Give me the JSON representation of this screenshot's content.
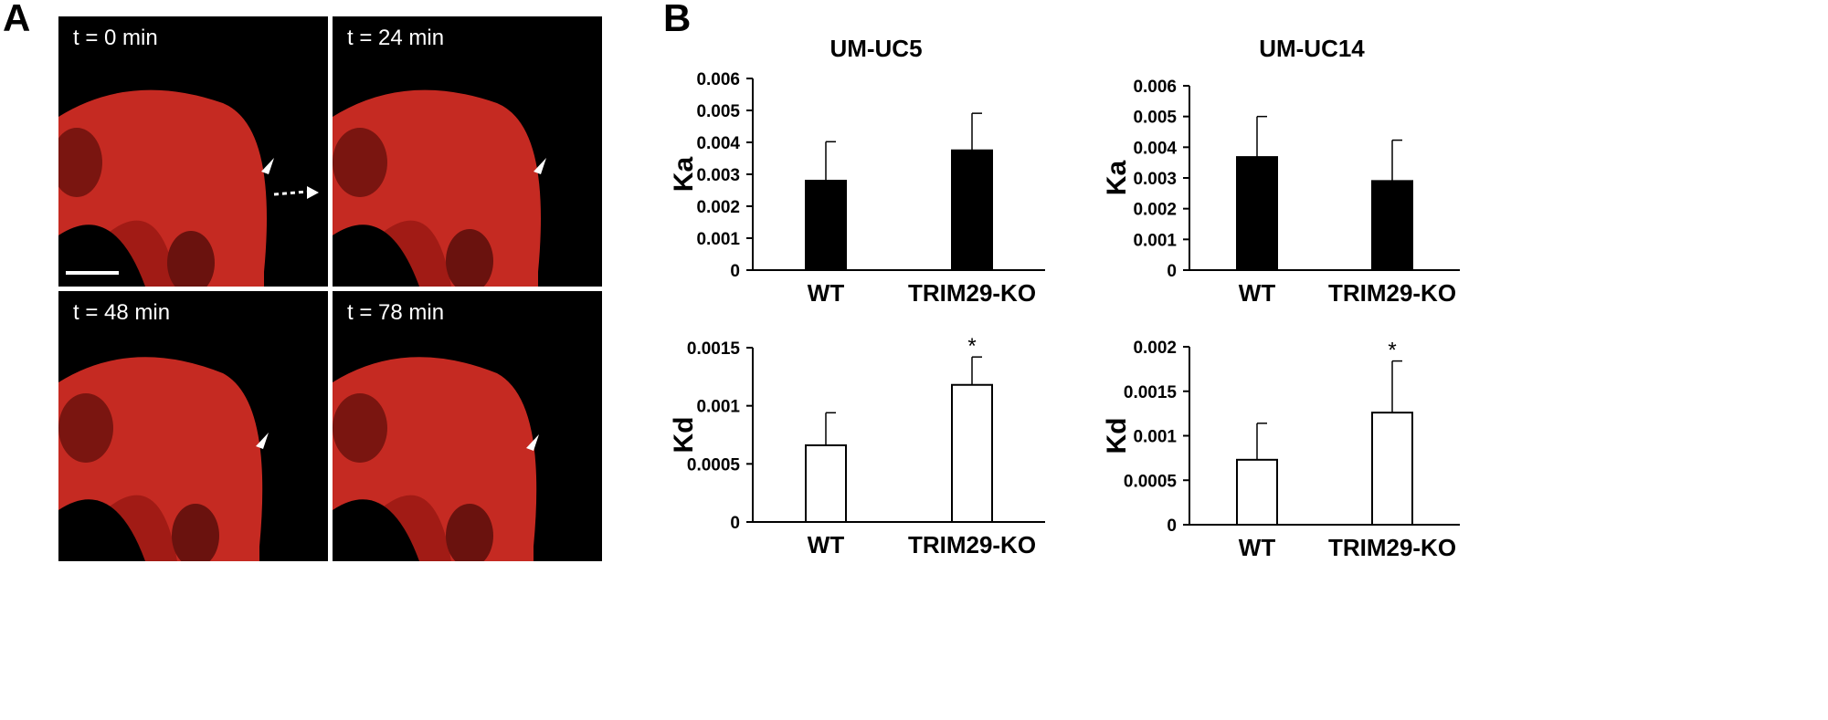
{
  "panels": {
    "a_label": "A",
    "b_label": "B"
  },
  "micrographs": [
    {
      "time": "t = 0 min"
    },
    {
      "time": "t = 24 min"
    },
    {
      "time": "t = 48 min"
    },
    {
      "time": "t = 78 min"
    }
  ],
  "chart_data": [
    {
      "type": "bar",
      "title": "UM-UC5",
      "ylabel": "Ka",
      "categories": [
        "WT",
        "TRIM29-KO"
      ],
      "series": [
        {
          "values": [
            0.0028,
            0.00375
          ],
          "errors": [
            0.00122,
            0.00116
          ]
        }
      ],
      "yticks": [
        "0",
        "0.001",
        "0.002",
        "0.003",
        "0.004",
        "0.005",
        "0.006"
      ],
      "ylim": [
        0,
        0.006
      ],
      "fill": "#000000",
      "significance": [
        "",
        ""
      ]
    },
    {
      "type": "bar",
      "title": "UM-UC14",
      "ylabel": "Ka",
      "categories": [
        "WT",
        "TRIM29-KO"
      ],
      "series": [
        {
          "values": [
            0.00368,
            0.0029
          ],
          "errors": [
            0.00132,
            0.00133
          ]
        }
      ],
      "yticks": [
        "0",
        "0.001",
        "0.002",
        "0.003",
        "0.004",
        "0.005",
        "0.006"
      ],
      "ylim": [
        0,
        0.006
      ],
      "fill": "#000000",
      "significance": [
        "",
        ""
      ]
    },
    {
      "type": "bar",
      "title": "",
      "ylabel": "Kd",
      "categories": [
        "WT",
        "TRIM29-KO"
      ],
      "series": [
        {
          "values": [
            0.00066,
            0.00118
          ],
          "errors": [
            0.00028,
            0.00024
          ]
        }
      ],
      "yticks": [
        "0",
        "0.0005",
        "0.001",
        "0.0015"
      ],
      "ylim": [
        0,
        0.0015
      ],
      "fill": "#ffffff",
      "significance": [
        "",
        "*"
      ]
    },
    {
      "type": "bar",
      "title": "",
      "ylabel": "Kd",
      "categories": [
        "WT",
        "TRIM29-KO"
      ],
      "series": [
        {
          "values": [
            0.00073,
            0.00126
          ],
          "errors": [
            0.00041,
            0.00058
          ]
        }
      ],
      "yticks": [
        "0",
        "0.0005",
        "0.001",
        "0.0015",
        "0.002"
      ],
      "ylim": [
        0,
        0.002
      ],
      "fill": "#ffffff",
      "significance": [
        "",
        "*"
      ]
    }
  ]
}
